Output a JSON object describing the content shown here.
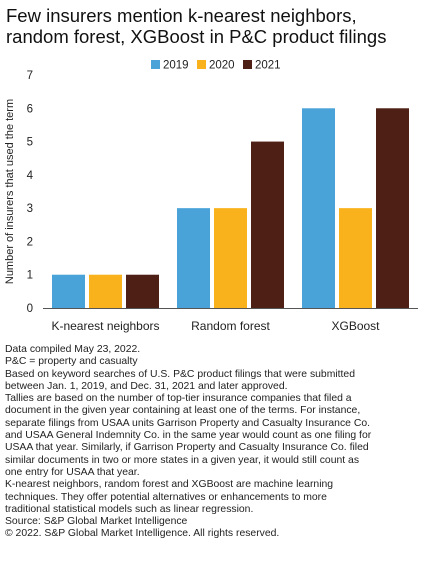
{
  "title_lines": [
    "Few insurers mention k-nearest neighbors,",
    "random forest, XGBoost in P&C product filings"
  ],
  "notes": [
    "Data compiled May 23, 2022.",
    "P&C = property and casualty",
    "Based on keyword searches of U.S. P&C product filings that were submitted",
    "between Jan. 1, 2019, and Dec. 31, 2021 and later approved.",
    "Tallies are based on the number of top-tier insurance companies that filed a",
    "document in the given year containing at least one of the terms. For instance,",
    "separate filings from USAA units Garrison Property and Casualty Insurance Co.",
    "and USAA General Indemnity Co. in the same year would count as one filing for",
    "USAA that year. Similarly, if Garrison Property and Casualty Insurance Co. filed",
    "similar documents in two or more states in a given year, it would still count as",
    "one entry for USAA that year.",
    "K-nearest neighbors, random forest and XGBoost are machine learning",
    "techniques. They offer potential alternatives or enhancements to more",
    "traditional statistical models such as linear regression.",
    "Source: S&P Global Market Intelligence",
    "© 2022. S&P Global Market Intelligence. All rights reserved."
  ],
  "colors": {
    "2019": "#4aa3d8",
    "2020": "#f9b21b",
    "2021": "#4e1f14",
    "axis": "#555555"
  },
  "chart_data": {
    "type": "bar",
    "categories": [
      "K-nearest neighbors",
      "Random forest",
      "XGBoost"
    ],
    "series": [
      {
        "name": "2019",
        "values": [
          1,
          3,
          6
        ]
      },
      {
        "name": "2020",
        "values": [
          1,
          3,
          3
        ]
      },
      {
        "name": "2021",
        "values": [
          1,
          5,
          6
        ]
      }
    ],
    "ylabel": "Number of insurers that used the term",
    "ylim": [
      0,
      7
    ],
    "yticks": [
      0,
      1,
      2,
      3,
      4,
      5,
      6,
      7
    ],
    "legend_position": "top-center",
    "grid": false
  }
}
